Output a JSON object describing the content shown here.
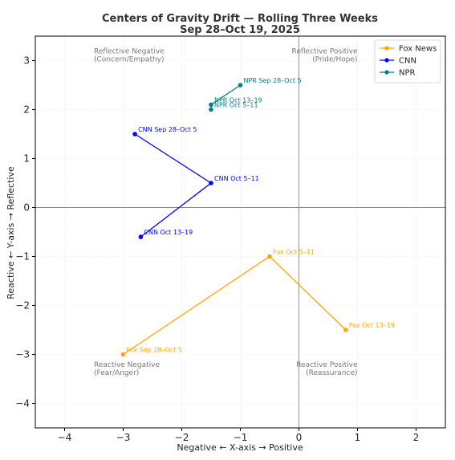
{
  "chart_data": {
    "type": "line",
    "title_line1": "Centers of Gravity Drift — Rolling Three Weeks",
    "title_line2": "Sep 28–Oct 19, 2025",
    "xlabel": "Negative ← X-axis → Positive",
    "ylabel": "Reactive ← Y-axis → Reflective",
    "xlim": [
      -4.5,
      2.5
    ],
    "ylim": [
      -4.5,
      3.5
    ],
    "xticks": [
      -4,
      -3,
      -2,
      -1,
      0,
      1,
      2
    ],
    "yticks": [
      -4,
      -3,
      -2,
      -1,
      0,
      1,
      2,
      3
    ],
    "xtick_labels": [
      "−4",
      "−3",
      "−2",
      "−1",
      "0",
      "1",
      "2"
    ],
    "ytick_labels": [
      "−4",
      "−3",
      "−2",
      "−1",
      "0",
      "1",
      "2",
      "3"
    ],
    "grid": true,
    "legend_position": "top-right",
    "quadrant_labels": [
      {
        "lines": [
          "Reflective Negative",
          "(Concern/Empathy)"
        ],
        "x": -3.5,
        "y": 3.15,
        "anchor": "start"
      },
      {
        "lines": [
          "Reflective Positive",
          "(Pride/Hope)"
        ],
        "x": 1.0,
        "y": 3.15,
        "anchor": "end"
      },
      {
        "lines": [
          "Reactive Negative",
          "(Fear/Anger)"
        ],
        "x": -3.5,
        "y": -3.25,
        "anchor": "start"
      },
      {
        "lines": [
          "Reactive Positive",
          "(Reassurance)"
        ],
        "x": 1.0,
        "y": -3.25,
        "anchor": "end"
      }
    ],
    "series": [
      {
        "name": "Fox News",
        "color": "#FFA500",
        "points": [
          {
            "x": -3.0,
            "y": -3.0,
            "label": "Fox Sep 28–Oct 5"
          },
          {
            "x": -0.5,
            "y": -1.0,
            "label": "Fox Oct 5–11"
          },
          {
            "x": 0.8,
            "y": -2.5,
            "label": "Fox Oct 13–19"
          }
        ]
      },
      {
        "name": "CNN",
        "color": "#0000FF",
        "points": [
          {
            "x": -2.8,
            "y": 1.5,
            "label": "CNN Sep 28–Oct 5"
          },
          {
            "x": -1.5,
            "y": 0.5,
            "label": "CNN Oct 5–11"
          },
          {
            "x": -2.7,
            "y": -0.6,
            "label": "CNN Oct 13–19"
          }
        ]
      },
      {
        "name": "NPR",
        "color": "#008080",
        "points": [
          {
            "x": -1.0,
            "y": 2.5,
            "label": "NPR Sep 28–Oct 5"
          },
          {
            "x": -1.5,
            "y": 2.1,
            "label": "NPR Oct 13–19"
          },
          {
            "x": -1.5,
            "y": 2.0,
            "label": "NPR Oct 5–11"
          }
        ]
      }
    ]
  }
}
